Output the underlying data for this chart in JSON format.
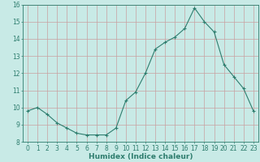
{
  "x": [
    0,
    1,
    2,
    3,
    4,
    5,
    6,
    7,
    8,
    9,
    10,
    11,
    12,
    13,
    14,
    15,
    16,
    17,
    18,
    19,
    20,
    21,
    22,
    23
  ],
  "y": [
    9.8,
    10.0,
    9.6,
    9.1,
    8.8,
    8.5,
    8.4,
    8.4,
    8.4,
    8.8,
    10.4,
    10.9,
    12.0,
    13.4,
    13.8,
    14.1,
    14.6,
    15.8,
    15.0,
    14.4,
    12.5,
    11.8,
    11.1,
    9.8
  ],
  "line_color": "#2e7d6e",
  "marker": "+",
  "marker_size": 3,
  "bg_color": "#c8eae6",
  "grid_color_major": "#c8a0a0",
  "grid_color_minor": "#dcc0c0",
  "xlabel": "Humidex (Indice chaleur)",
  "xlim": [
    -0.5,
    23.5
  ],
  "ylim": [
    8,
    16
  ],
  "yticks": [
    8,
    9,
    10,
    11,
    12,
    13,
    14,
    15,
    16
  ],
  "xticks": [
    0,
    1,
    2,
    3,
    4,
    5,
    6,
    7,
    8,
    9,
    10,
    11,
    12,
    13,
    14,
    15,
    16,
    17,
    18,
    19,
    20,
    21,
    22,
    23
  ],
  "xlabel_fontsize": 6.5,
  "tick_fontsize": 5.5
}
